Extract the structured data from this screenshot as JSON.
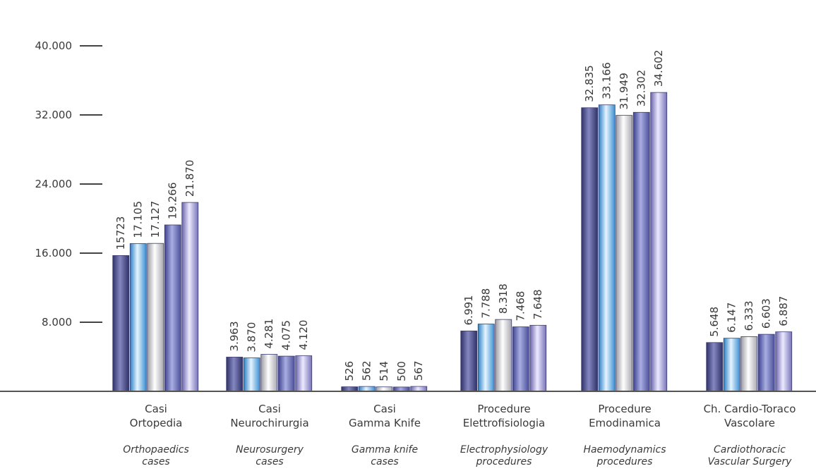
{
  "chart_data": {
    "type": "bar",
    "title": "",
    "xlabel": "",
    "ylabel": "",
    "ylim": [
      0,
      40000
    ],
    "yticks": [
      8000,
      16000,
      24000,
      32000,
      40000
    ],
    "ytick_labels": [
      "8.000",
      "16.000",
      "24.000",
      "32.000",
      "40.000"
    ],
    "grid": false,
    "categories": [
      {
        "it": [
          "Casi",
          "Ortopedia"
        ],
        "en": [
          "Orthopaedics",
          "cases"
        ]
      },
      {
        "it": [
          "Casi",
          "Neurochirurgia"
        ],
        "en": [
          "Neurosurgery",
          "cases"
        ]
      },
      {
        "it": [
          "Casi",
          "Gamma Knife"
        ],
        "en": [
          "Gamma knife",
          "cases"
        ]
      },
      {
        "it": [
          "Procedure",
          "Elettrofisiologia"
        ],
        "en": [
          "Electrophysiology",
          "procedures"
        ]
      },
      {
        "it": [
          "Procedure",
          "Emodinamica"
        ],
        "en": [
          "Haemodynamics",
          "procedures"
        ]
      },
      {
        "it": [
          "Ch. Cardio-Toraco",
          "Vascolare"
        ],
        "en": [
          "Cardiothoracic",
          "Vascular Surgery"
        ]
      }
    ],
    "groups": [
      {
        "values": [
          15723,
          17105,
          17127,
          19266,
          21870
        ],
        "labels": [
          "15723",
          "17.105",
          "17.127",
          "19.266",
          "21.870"
        ]
      },
      {
        "values": [
          3963,
          3870,
          4281,
          4075,
          4120
        ],
        "labels": [
          "3.963",
          "3.870",
          "4.281",
          "4.075",
          "4.120"
        ]
      },
      {
        "values": [
          526,
          562,
          514,
          500,
          567
        ],
        "labels": [
          "526",
          "562",
          "514",
          "500",
          "567"
        ]
      },
      {
        "values": [
          6991,
          7788,
          8318,
          7468,
          7648
        ],
        "labels": [
          "6.991",
          "7.788",
          "8.318",
          "7.468",
          "7.648"
        ]
      },
      {
        "values": [
          32835,
          33166,
          31949,
          32302,
          34602
        ],
        "labels": [
          "32.835",
          "33.166",
          "31.949",
          "32.302",
          "34.602"
        ]
      },
      {
        "values": [
          5648,
          6147,
          6333,
          6603,
          6887
        ],
        "labels": [
          "5.648",
          "6.147",
          "6.333",
          "6.603",
          "6.887"
        ]
      }
    ],
    "bar_colors": [
      "#4a4d86",
      "#5aa7dd",
      "#c8c8cc",
      "#7a7fbf",
      "#8e88c8"
    ]
  }
}
